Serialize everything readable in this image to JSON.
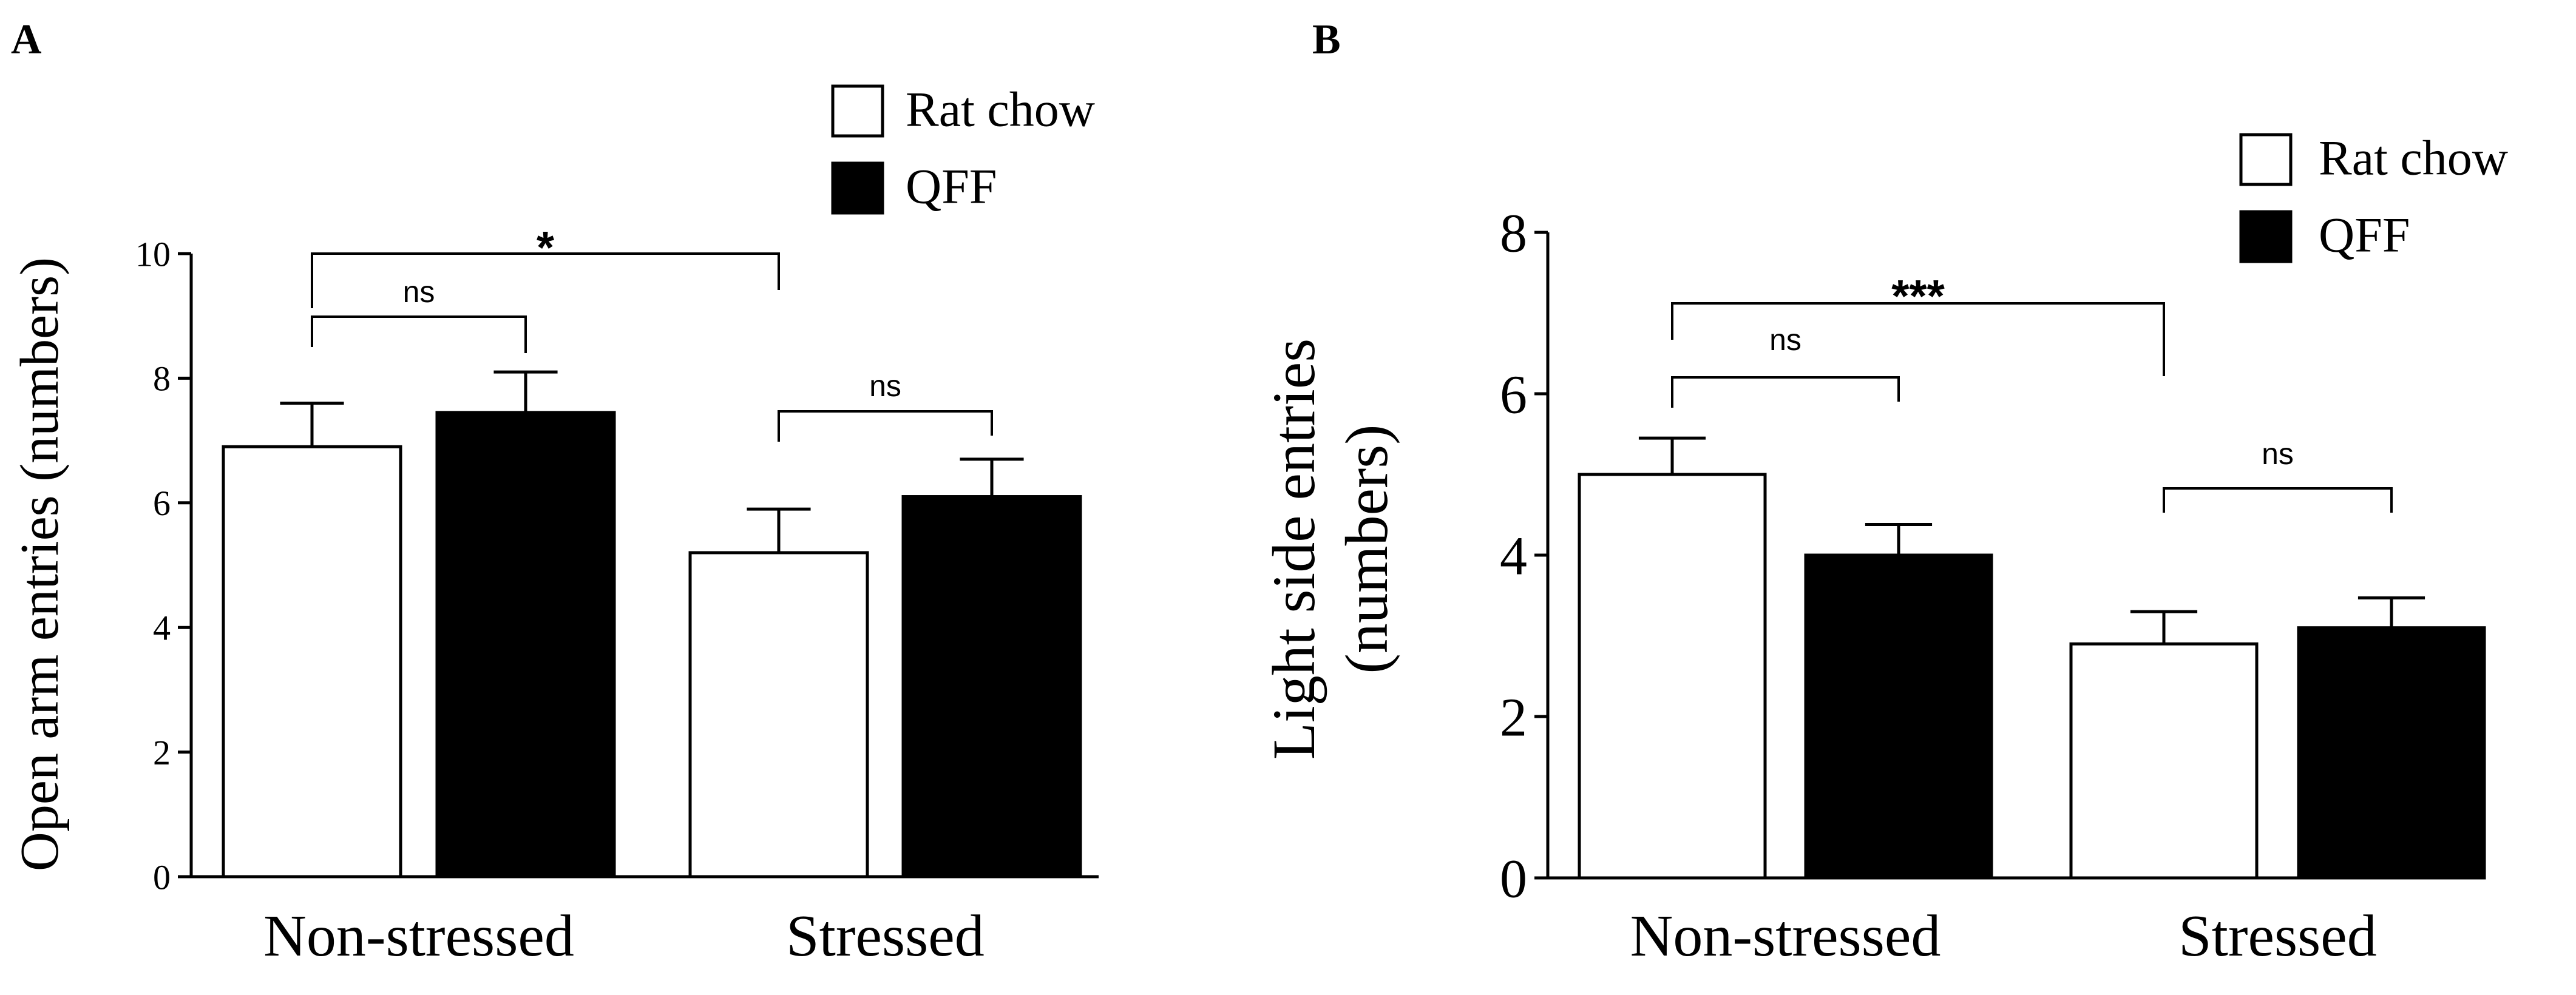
{
  "chart_data": [
    {
      "panel": "A",
      "type": "bar",
      "ylabel": "Open arm entries  (numbers)",
      "ylim": [
        0,
        10
      ],
      "yticks": [
        0,
        2,
        4,
        6,
        8,
        10
      ],
      "categories": [
        "Non-stressed",
        "Stressed"
      ],
      "series": [
        {
          "name": "Rat chow",
          "color": "#ffffff",
          "values": [
            6.9,
            5.2
          ],
          "errors": [
            0.7,
            0.7
          ]
        },
        {
          "name": "QFF",
          "color": "#000000",
          "values": [
            7.45,
            6.1
          ],
          "errors": [
            0.65,
            0.6
          ]
        }
      ],
      "legend": "top-right",
      "annotations": [
        {
          "text": "*",
          "from": [
            0,
            0
          ],
          "to": [
            1,
            0
          ],
          "label_size": "large"
        },
        {
          "text": "ns",
          "from": [
            0,
            0
          ],
          "to": [
            0,
            1
          ],
          "label_size": "small"
        },
        {
          "text": "ns",
          "from": [
            1,
            0
          ],
          "to": [
            1,
            1
          ],
          "label_size": "small"
        }
      ]
    },
    {
      "panel": "B",
      "type": "bar",
      "ylabel": "Light side entries (numbers)",
      "ylabel_lines": [
        "Light side entries",
        "(numbers)"
      ],
      "ylim": [
        0,
        8
      ],
      "yticks": [
        0,
        2,
        4,
        6,
        8
      ],
      "categories": [
        "Non-stressed",
        "Stressed"
      ],
      "series": [
        {
          "name": "Rat chow",
          "color": "#ffffff",
          "values": [
            5.0,
            2.9
          ],
          "errors": [
            0.45,
            0.4
          ]
        },
        {
          "name": "QFF",
          "color": "#000000",
          "values": [
            4.0,
            3.1
          ],
          "errors": [
            0.38,
            0.37
          ]
        }
      ],
      "legend": "top-right",
      "annotations": [
        {
          "text": "***",
          "from": [
            0,
            0
          ],
          "to": [
            1,
            0
          ],
          "label_size": "large"
        },
        {
          "text": "ns",
          "from": [
            0,
            0
          ],
          "to": [
            0,
            1
          ],
          "label_size": "small"
        },
        {
          "text": "ns",
          "from": [
            1,
            0
          ],
          "to": [
            1,
            1
          ],
          "label_size": "small"
        }
      ]
    }
  ]
}
